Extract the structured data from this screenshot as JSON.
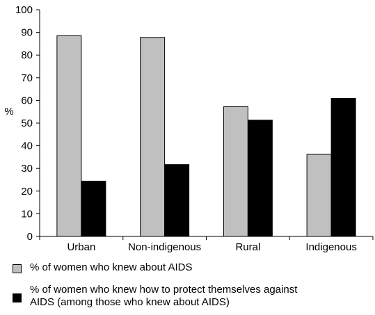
{
  "chart_data": {
    "type": "bar",
    "title": "",
    "xlabel": "",
    "ylabel": "%",
    "ylim": [
      0,
      100
    ],
    "yticks": [
      0,
      10,
      20,
      30,
      40,
      50,
      60,
      70,
      80,
      90,
      100
    ],
    "categories": [
      "Urban",
      "Non-indigenous",
      "Rural",
      "Indigenous"
    ],
    "series": [
      {
        "name": "% of women who knew about AIDS",
        "color": "#c0c0c0",
        "values": [
          88.5,
          87.8,
          57.2,
          36.2
        ]
      },
      {
        "name": "% of women who knew how to protect themselves against AIDS (among those who knew about AIDS)",
        "color": "#000000",
        "values": [
          24.4,
          31.7,
          51.3,
          60.9
        ]
      }
    ],
    "legend": {
      "position": "bottom",
      "items": [
        {
          "label_lines": [
            "% of women who knew about AIDS"
          ]
        },
        {
          "label_lines": [
            "% of women who knew how to protect themselves against",
            "AIDS (among those who knew about AIDS)"
          ]
        }
      ]
    },
    "grid": false
  }
}
